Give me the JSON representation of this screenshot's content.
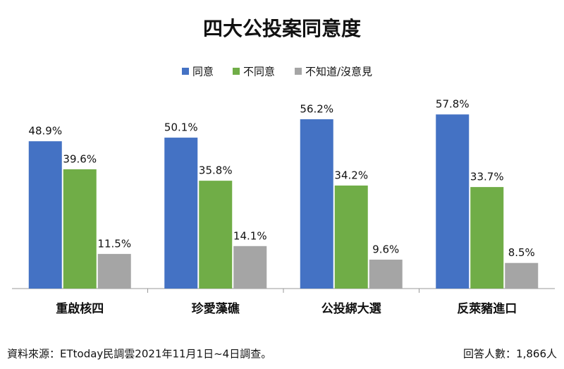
{
  "chart_data": {
    "type": "bar",
    "title": "四大公投案同意度",
    "categories": [
      "重啟核四",
      "珍愛藻礁",
      "公投綁大選",
      "反萊豬進口"
    ],
    "series": [
      {
        "name": "同意",
        "color": "#4472c4",
        "values": [
          48.9,
          50.1,
          56.2,
          57.8
        ],
        "value_labels": [
          "48.9%",
          "50.1%",
          "56.2%",
          "57.8%"
        ]
      },
      {
        "name": "不同意",
        "color": "#70ad47",
        "values": [
          39.6,
          35.8,
          34.2,
          33.7
        ],
        "value_labels": [
          "39.6%",
          "35.8%",
          "34.2%",
          "33.7%"
        ]
      },
      {
        "name": "不知道/沒意見",
        "color": "#a5a5a5",
        "values": [
          11.5,
          14.1,
          9.6,
          8.5
        ],
        "value_labels": [
          "11.5%",
          "14.1%",
          "9.6%",
          "8.5%"
        ]
      }
    ],
    "source": "資料來源：ETtoday民調雲2021年11月1日~4日調查。",
    "sample": "回答人數：1,866人"
  }
}
